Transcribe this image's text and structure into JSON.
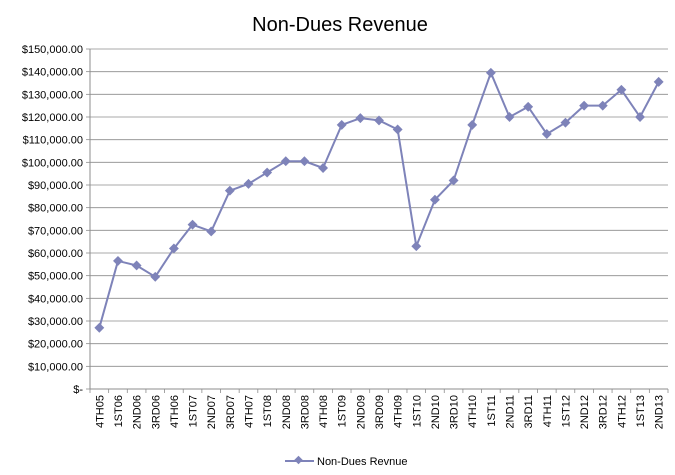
{
  "chart_data": {
    "type": "line",
    "title": "Non-Dues Revenue",
    "xlabel": "",
    "ylabel": "",
    "ylim": [
      0,
      150000
    ],
    "ytick_step": 10000,
    "ytick_labels": [
      "$-",
      "$10,000.00",
      "$20,000.00",
      "$30,000.00",
      "$40,000.00",
      "$50,000.00",
      "$60,000.00",
      "$70,000.00",
      "$80,000.00",
      "$90,000.00",
      "$100,000.00",
      "$110,000.00",
      "$120,000.00",
      "$130,000.00",
      "$140,000.00",
      "$150,000.00"
    ],
    "grid": true,
    "legend_position": "bottom",
    "color": "#7e83b9",
    "categories": [
      "4TH05",
      "1ST06",
      "2ND06",
      "3RD06",
      "4TH06",
      "1ST07",
      "2ND07",
      "3RD07",
      "4TH07",
      "1ST08",
      "2ND08",
      "3RD08",
      "4TH08",
      "1ST09",
      "2ND09",
      "3RD09",
      "4TH09",
      "1ST10",
      "2ND10",
      "3RD10",
      "4TH10",
      "1ST11",
      "2ND11",
      "3RD11",
      "4TH11",
      "1ST12",
      "2ND12",
      "3RD12",
      "4TH12",
      "1ST13",
      "2ND13"
    ],
    "series": [
      {
        "name": "Non-Dues Revnue",
        "values": [
          27000,
          56500,
          54500,
          49500,
          62000,
          72500,
          69500,
          87500,
          90500,
          95500,
          100500,
          100500,
          97500,
          116500,
          119500,
          118500,
          114500,
          63000,
          83500,
          92000,
          116500,
          139500,
          120000,
          124500,
          112500,
          117500,
          125000,
          125000,
          132000,
          120000,
          135500
        ]
      }
    ]
  }
}
